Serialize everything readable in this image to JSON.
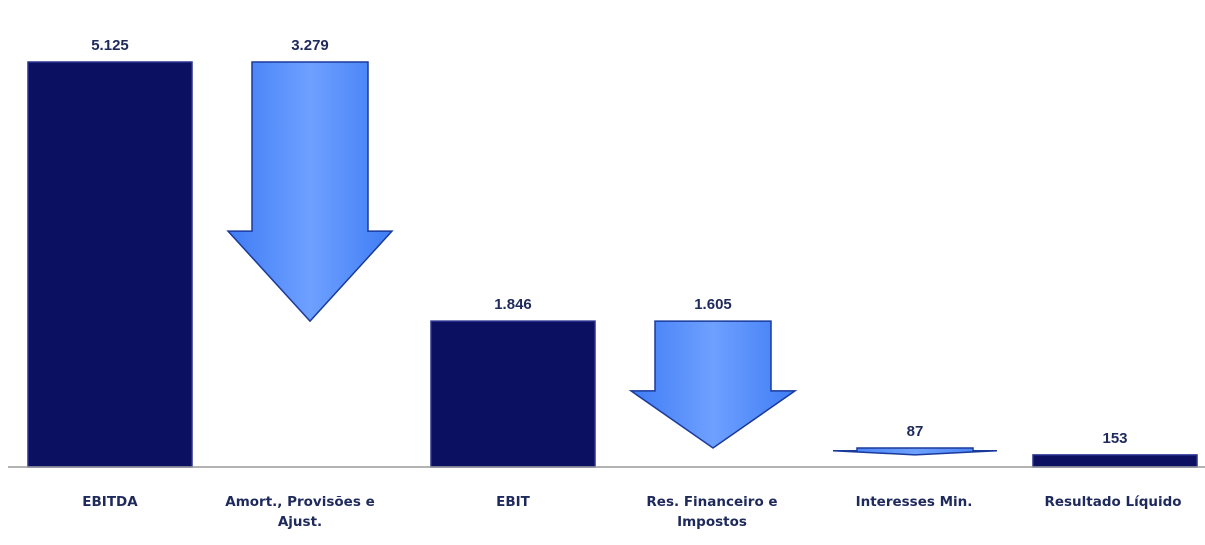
{
  "chart_data": {
    "type": "waterfall",
    "title": "",
    "xlabel": "",
    "ylabel": "",
    "ylim": [
      0,
      5125
    ],
    "grid": false,
    "legend": "none",
    "colors": {
      "total_bar": "#0b1160",
      "total_bar_edge": "#2b3390",
      "arrow_fill": "#3f7cf5",
      "arrow_light": "#6ea0ff",
      "arrow_stroke": "#1a3a9a",
      "label": "#1f2a5c",
      "axis": "#9a9a9a"
    },
    "steps": [
      {
        "category": "EBITDA",
        "kind": "total",
        "value": 5125,
        "label": "5.125"
      },
      {
        "category": "Amort., Provisões e Ajust.",
        "kind": "decrease",
        "value": 3279,
        "label": "3.279"
      },
      {
        "category": "EBIT",
        "kind": "total",
        "value": 1846,
        "label": "1.846"
      },
      {
        "category": "Res. Financeiro e Impostos",
        "kind": "decrease",
        "value": 1605,
        "label": "1.605"
      },
      {
        "category": "Interesses Min.",
        "kind": "decrease",
        "value": 87,
        "label": "87"
      },
      {
        "category": "Resultado Líquido",
        "kind": "total",
        "value": 153,
        "label": "153"
      }
    ]
  }
}
